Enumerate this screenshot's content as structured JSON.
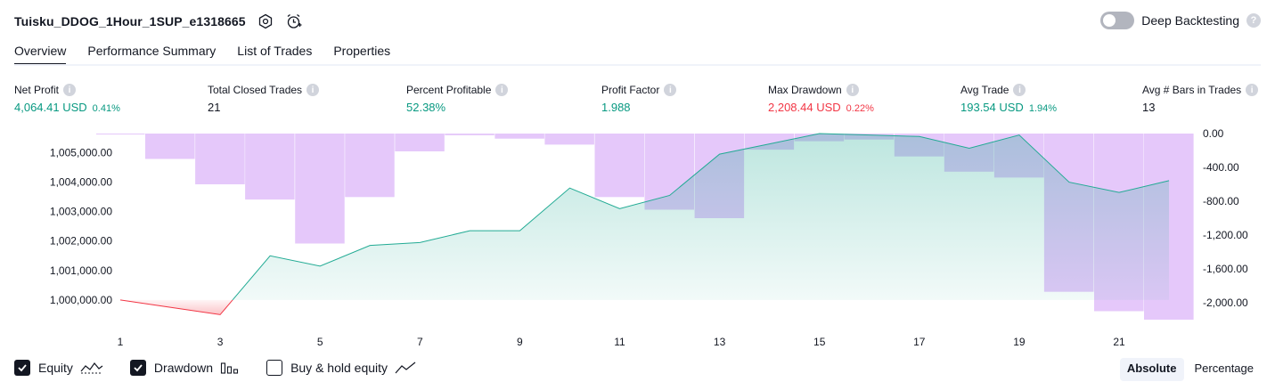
{
  "header": {
    "strategy_name": "Tuisku_DDOG_1Hour_1SUP_e1318665",
    "deep_backtesting_label": "Deep Backtesting",
    "help_glyph": "?"
  },
  "tabs": [
    {
      "label": "Overview",
      "active": true
    },
    {
      "label": "Performance Summary",
      "active": false
    },
    {
      "label": "List of Trades",
      "active": false
    },
    {
      "label": "Properties",
      "active": false
    }
  ],
  "metrics": [
    {
      "label": "Net Profit",
      "value": "4,064.41 USD",
      "pct": "0.41%",
      "color": "green"
    },
    {
      "label": "Total Closed Trades",
      "value": "21",
      "pct": "",
      "color": "dark"
    },
    {
      "label": "Percent Profitable",
      "value": "52.38%",
      "pct": "",
      "color": "green"
    },
    {
      "label": "Profit Factor",
      "value": "1.988",
      "pct": "",
      "color": "green"
    },
    {
      "label": "Max Drawdown",
      "value": "2,208.44 USD",
      "pct": "0.22%",
      "color": "red"
    },
    {
      "label": "Avg Trade",
      "value": "193.54 USD",
      "pct": "1.94%",
      "color": "green"
    },
    {
      "label": "Avg # Bars in Trades",
      "value": "13",
      "pct": "",
      "color": "dark"
    }
  ],
  "info_glyph": "i",
  "colors": {
    "green": "#089981",
    "red": "#f23645",
    "drawdown": "#e1bef9",
    "equity_line": "#22ab94",
    "equity_loss": "#f23645"
  },
  "legend": {
    "equity_label": "Equity",
    "drawdown_label": "Drawdown",
    "buyhold_label": "Buy & hold equity"
  },
  "view_modes": {
    "absolute_label": "Absolute",
    "percentage_label": "Percentage"
  },
  "chart_data": {
    "type": "line",
    "x": [
      1,
      2,
      3,
      4,
      5,
      6,
      7,
      8,
      9,
      10,
      11,
      12,
      13,
      14,
      15,
      16,
      17,
      18,
      19,
      20,
      21,
      22
    ],
    "x_ticks": [
      "1",
      "3",
      "5",
      "7",
      "9",
      "11",
      "13",
      "15",
      "17",
      "19",
      "21"
    ],
    "xlim": [
      0.5,
      22.5
    ],
    "series": [
      {
        "values": [
          1000000,
          999750,
          999500,
          1001500,
          1001150,
          1001850,
          1001950,
          1002350,
          1002350,
          1003800,
          1003100,
          1003550,
          1004950,
          1005300,
          1005650,
          1005600,
          1005550,
          1005150,
          1005600,
          1004000,
          1003650,
          1004050
        ],
        "axis": "left"
      },
      {
        "type": "bar",
        "values": [
          -5,
          -300,
          -600,
          -780,
          -1300,
          -750,
          -210,
          -20,
          -60,
          -130,
          -750,
          -900,
          -1000,
          -190,
          -90,
          -70,
          -270,
          -450,
          -520,
          -1870,
          -2100,
          -2200
        ],
        "axis": "right"
      }
    ],
    "y_left": {
      "ticks": [
        "1,000,000.00",
        "1,001,000.00",
        "1,002,000.00",
        "1,003,000.00",
        "1,004,000.00",
        "1,005,000.00"
      ],
      "ylim": [
        999300,
        1005650
      ]
    },
    "y_right": {
      "ticks": [
        "0.00",
        "-400.00",
        "-800.00",
        "-1,200.00",
        "-1,600.00",
        "-2,000.00"
      ],
      "ylim": [
        -2210,
        0
      ]
    },
    "grid": false,
    "legend_position": "bottom-left"
  }
}
